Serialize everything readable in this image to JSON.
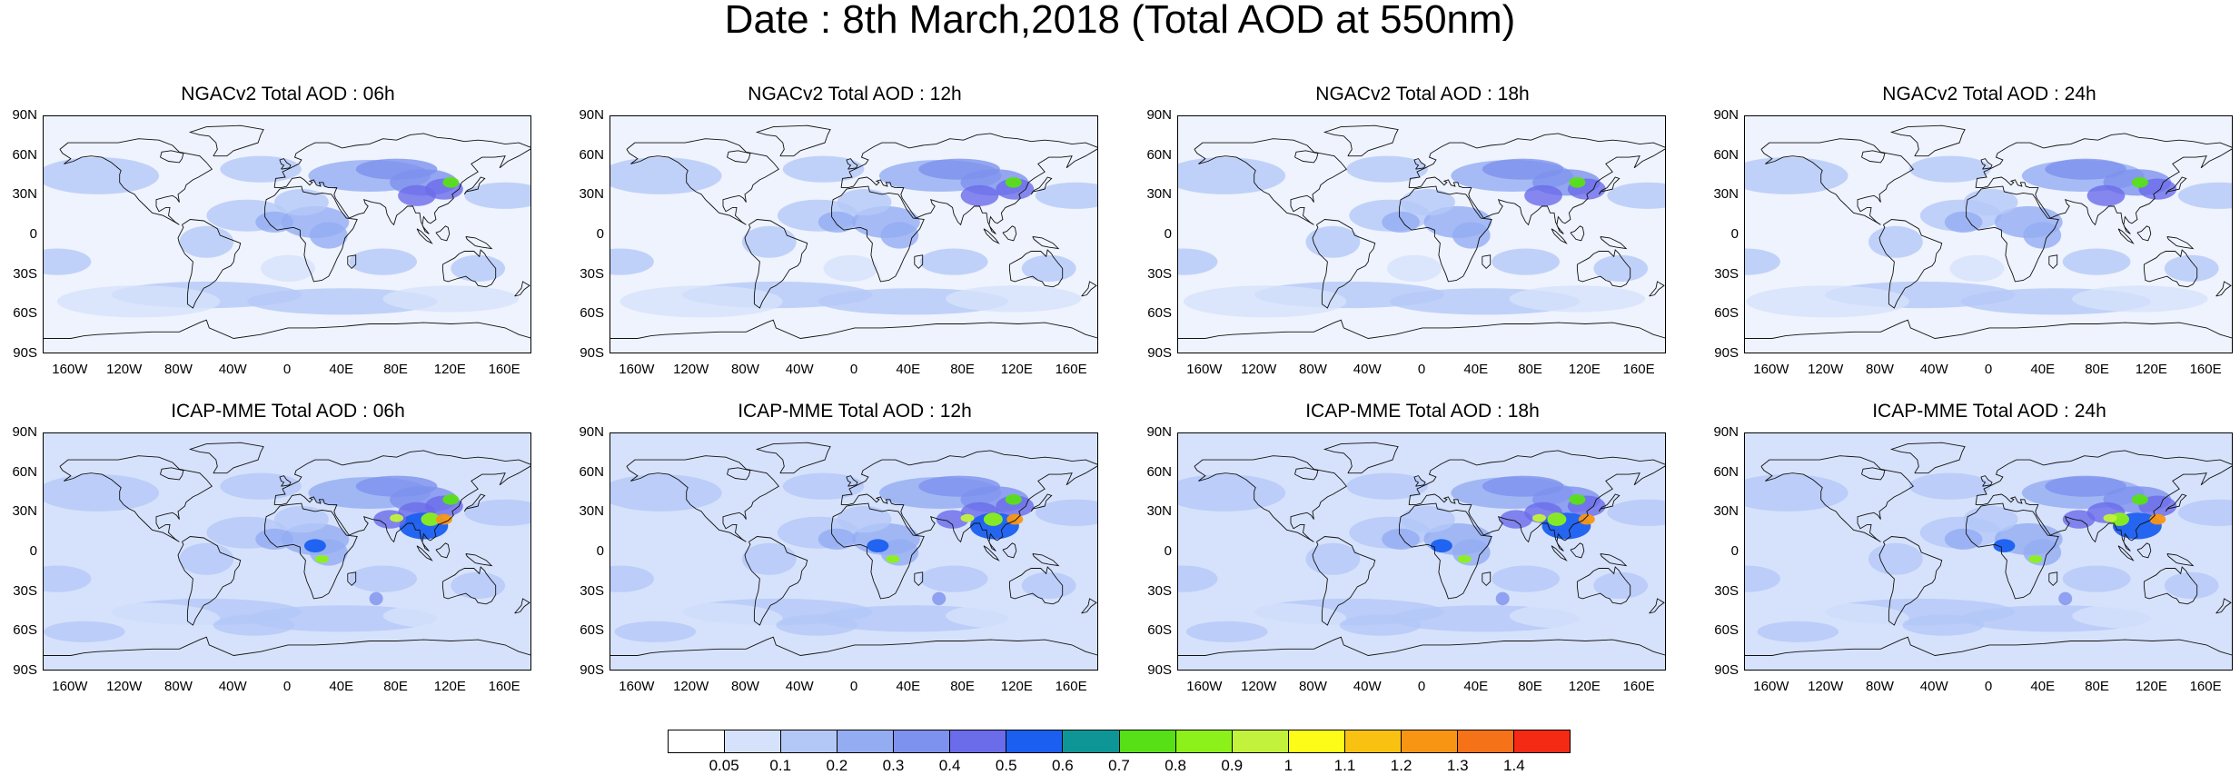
{
  "figure": {
    "title": "Date : 8th March,2018 (Total AOD at 550nm)"
  },
  "panels": [
    {
      "title": "NGACv2 Total AOD : 06h",
      "model": "NGACv2",
      "lead": "06h"
    },
    {
      "title": "NGACv2 Total AOD : 12h",
      "model": "NGACv2",
      "lead": "12h"
    },
    {
      "title": "NGACv2 Total AOD : 18h",
      "model": "NGACv2",
      "lead": "18h"
    },
    {
      "title": "NGACv2 Total AOD : 24h",
      "model": "NGACv2",
      "lead": "24h"
    },
    {
      "title": "ICAP-MME Total AOD : 06h",
      "model": "ICAP-MME",
      "lead": "06h"
    },
    {
      "title": "ICAP-MME Total AOD : 12h",
      "model": "ICAP-MME",
      "lead": "12h"
    },
    {
      "title": "ICAP-MME Total AOD : 18h",
      "model": "ICAP-MME",
      "lead": "18h"
    },
    {
      "title": "ICAP-MME Total AOD : 24h",
      "model": "ICAP-MME",
      "lead": "24h"
    }
  ],
  "axes": {
    "lat_ticks": [
      "90N",
      "60N",
      "30N",
      "0",
      "30S",
      "60S",
      "90S"
    ],
    "lon_ticks": [
      "160W",
      "120W",
      "80W",
      "40W",
      "0",
      "40E",
      "80E",
      "120E",
      "160E"
    ]
  },
  "colorbar": {
    "labels": [
      "0.05",
      "0.1",
      "0.2",
      "0.3",
      "0.4",
      "0.5",
      "0.6",
      "0.7",
      "0.8",
      "0.9",
      "1",
      "1.1",
      "1.2",
      "1.3",
      "1.4"
    ],
    "colors": [
      "#ffffff",
      "#d6e2fb",
      "#b4c8f7",
      "#94adf2",
      "#7d91ee",
      "#6a6cea",
      "#1a5ff0",
      "#0e9696",
      "#58e016",
      "#8cf01a",
      "#c2f23c",
      "#fcfc18",
      "#f9c212",
      "#f89614",
      "#f67218",
      "#f52a14"
    ]
  }
}
